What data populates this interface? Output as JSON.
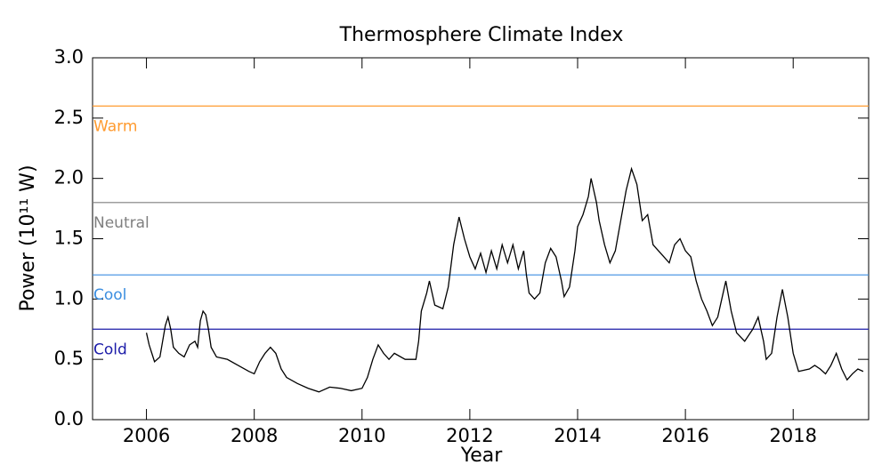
{
  "chart_data": {
    "type": "line",
    "title": "Thermosphere Climate Index",
    "xlabel": "Year",
    "ylabel": "Power (10¹¹ W)",
    "xlim": [
      2005.0,
      2019.4
    ],
    "ylim": [
      0,
      3
    ],
    "xticks": [
      2006,
      2008,
      2010,
      2012,
      2014,
      2016,
      2018
    ],
    "yticks": [
      {
        "value": 0,
        "label": "0.0"
      },
      {
        "value": 0.5,
        "label": "0.5"
      },
      {
        "value": 1,
        "label": "1.0"
      },
      {
        "value": 1.5,
        "label": "1.5"
      },
      {
        "value": 2,
        "label": "2.0"
      },
      {
        "value": 2.5,
        "label": "2.5"
      },
      {
        "value": 3,
        "label": "3.0"
      }
    ],
    "thresholds": [
      {
        "name": "Warm",
        "value": 2.6,
        "color": "#ff9a2e"
      },
      {
        "name": "Neutral",
        "value": 1.8,
        "color": "#7f7f7f"
      },
      {
        "name": "Cool",
        "value": 1.2,
        "color": "#3b8ee0"
      },
      {
        "name": "Cold",
        "value": 0.75,
        "color": "#1c1ca8"
      }
    ],
    "series": [
      {
        "color": "#000000",
        "x": [
          2006.0,
          2006.05,
          2006.1,
          2006.15,
          2006.25,
          2006.3,
          2006.35,
          2006.4,
          2006.45,
          2006.5,
          2006.6,
          2006.7,
          2006.8,
          2006.9,
          2006.95,
          2007.0,
          2007.05,
          2007.1,
          2007.15,
          2007.2,
          2007.3,
          2007.5,
          2007.7,
          2007.9,
          2008.0,
          2008.1,
          2008.2,
          2008.3,
          2008.4,
          2008.5,
          2008.6,
          2008.8,
          2009.0,
          2009.2,
          2009.4,
          2009.6,
          2009.8,
          2010.0,
          2010.1,
          2010.2,
          2010.3,
          2010.4,
          2010.5,
          2010.6,
          2010.8,
          2011.0,
          2011.05,
          2011.1,
          2011.2,
          2011.25,
          2011.35,
          2011.5,
          2011.6,
          2011.7,
          2011.8,
          2011.9,
          2012.0,
          2012.1,
          2012.2,
          2012.3,
          2012.4,
          2012.5,
          2012.6,
          2012.7,
          2012.8,
          2012.9,
          2013.0,
          2013.05,
          2013.1,
          2013.2,
          2013.3,
          2013.4,
          2013.5,
          2013.6,
          2013.7,
          2013.75,
          2013.85,
          2013.95,
          2014.0,
          2014.1,
          2014.2,
          2014.25,
          2014.3,
          2014.35,
          2014.4,
          2014.5,
          2014.6,
          2014.7,
          2014.8,
          2014.9,
          2015.0,
          2015.1,
          2015.2,
          2015.3,
          2015.4,
          2015.5,
          2015.6,
          2015.7,
          2015.8,
          2015.9,
          2016.0,
          2016.1,
          2016.2,
          2016.3,
          2016.4,
          2016.5,
          2016.6,
          2016.7,
          2016.75,
          2016.85,
          2016.95,
          2017.1,
          2017.25,
          2017.35,
          2017.45,
          2017.5,
          2017.6,
          2017.7,
          2017.8,
          2017.9,
          2018.0,
          2018.1,
          2018.3,
          2018.4,
          2018.5,
          2018.6,
          2018.7,
          2018.8,
          2018.9,
          2019.0,
          2019.1,
          2019.2,
          2019.3
        ],
        "values": [
          0.72,
          0.62,
          0.55,
          0.48,
          0.52,
          0.65,
          0.78,
          0.85,
          0.75,
          0.6,
          0.55,
          0.52,
          0.62,
          0.65,
          0.6,
          0.82,
          0.9,
          0.87,
          0.75,
          0.6,
          0.52,
          0.5,
          0.45,
          0.4,
          0.38,
          0.48,
          0.55,
          0.6,
          0.55,
          0.42,
          0.35,
          0.3,
          0.26,
          0.23,
          0.27,
          0.26,
          0.24,
          0.26,
          0.35,
          0.5,
          0.62,
          0.55,
          0.5,
          0.55,
          0.5,
          0.5,
          0.65,
          0.9,
          1.05,
          1.15,
          0.95,
          0.92,
          1.1,
          1.45,
          1.68,
          1.5,
          1.35,
          1.25,
          1.38,
          1.22,
          1.4,
          1.25,
          1.45,
          1.3,
          1.45,
          1.25,
          1.4,
          1.2,
          1.05,
          1.0,
          1.05,
          1.3,
          1.42,
          1.35,
          1.15,
          1.02,
          1.1,
          1.4,
          1.6,
          1.7,
          1.85,
          2.0,
          1.9,
          1.8,
          1.65,
          1.45,
          1.3,
          1.4,
          1.65,
          1.9,
          2.08,
          1.95,
          1.65,
          1.7,
          1.45,
          1.4,
          1.35,
          1.3,
          1.45,
          1.5,
          1.4,
          1.35,
          1.15,
          1.0,
          0.9,
          0.78,
          0.85,
          1.05,
          1.15,
          0.9,
          0.72,
          0.65,
          0.75,
          0.85,
          0.65,
          0.5,
          0.55,
          0.85,
          1.08,
          0.85,
          0.55,
          0.4,
          0.42,
          0.45,
          0.42,
          0.38,
          0.45,
          0.55,
          0.42,
          0.33,
          0.38,
          0.42,
          0.4
        ]
      }
    ]
  }
}
